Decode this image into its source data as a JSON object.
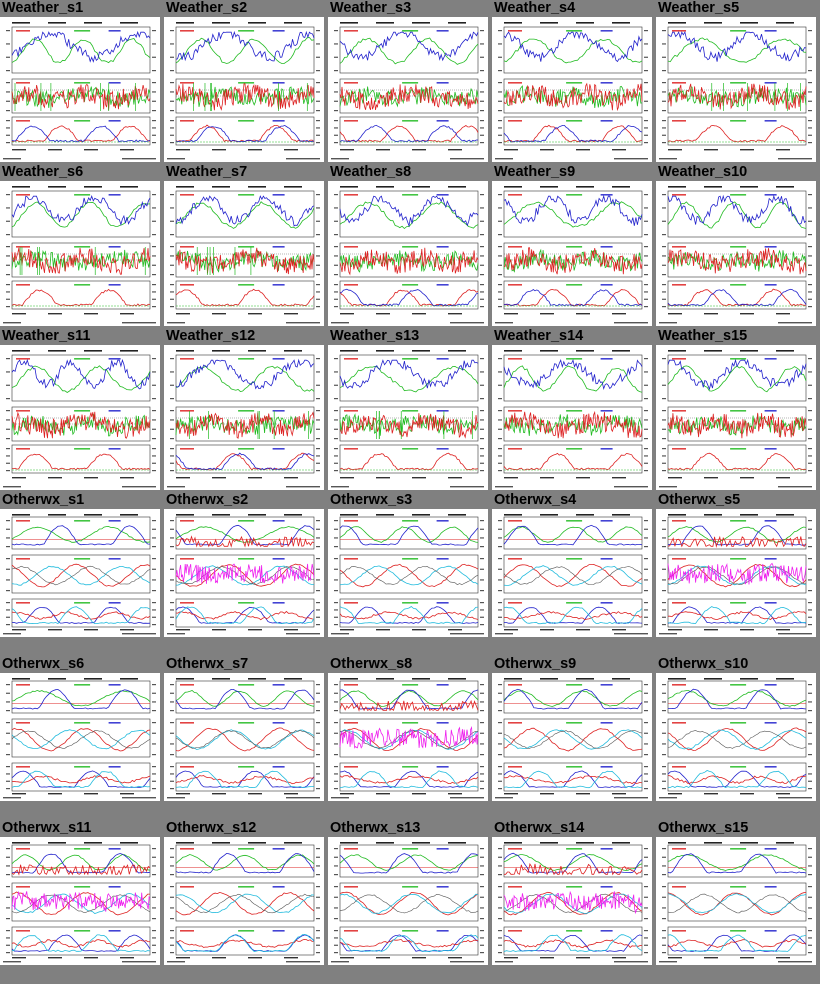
{
  "rows": [
    {
      "kind": "weather",
      "cells": [
        {
          "label": "Weather_s1"
        },
        {
          "label": "Weather_s2"
        },
        {
          "label": "Weather_s3"
        },
        {
          "label": "Weather_s4"
        },
        {
          "label": "Weather_s5"
        }
      ]
    },
    {
      "kind": "weather",
      "cells": [
        {
          "label": "Weather_s6"
        },
        {
          "label": "Weather_s7"
        },
        {
          "label": "Weather_s8"
        },
        {
          "label": "Weather_s9"
        },
        {
          "label": "Weather_s10"
        }
      ]
    },
    {
      "kind": "weather",
      "cells": [
        {
          "label": "Weather_s11"
        },
        {
          "label": "Weather_s12"
        },
        {
          "label": "Weather_s13"
        },
        {
          "label": "Weather_s14"
        },
        {
          "label": "Weather_s15"
        }
      ]
    },
    {
      "kind": "otherwx",
      "cells": [
        {
          "label": "Otherwx_s1"
        },
        {
          "label": "Otherwx_s2"
        },
        {
          "label": "Otherwx_s3"
        },
        {
          "label": "Otherwx_s4"
        },
        {
          "label": "Otherwx_s5"
        }
      ]
    },
    {
      "kind": "otherwx",
      "cells": [
        {
          "label": "Otherwx_s6"
        },
        {
          "label": "Otherwx_s7"
        },
        {
          "label": "Otherwx_s8"
        },
        {
          "label": "Otherwx_s9"
        },
        {
          "label": "Otherwx_s10"
        }
      ]
    },
    {
      "kind": "otherwx",
      "cells": [
        {
          "label": "Otherwx_s11"
        },
        {
          "label": "Otherwx_s12"
        },
        {
          "label": "Otherwx_s13"
        },
        {
          "label": "Otherwx_s14"
        },
        {
          "label": "Otherwx_s15"
        }
      ]
    }
  ],
  "colors": {
    "page_background": "#808080",
    "thumbnail_background": "#ffffff",
    "series_blue": "#2222cc",
    "series_green": "#22bb22",
    "series_red": "#dd2222",
    "series_cyan": "#22bbdd",
    "series_magenta": "#ee22ee",
    "series_orange": "#ee8822"
  }
}
